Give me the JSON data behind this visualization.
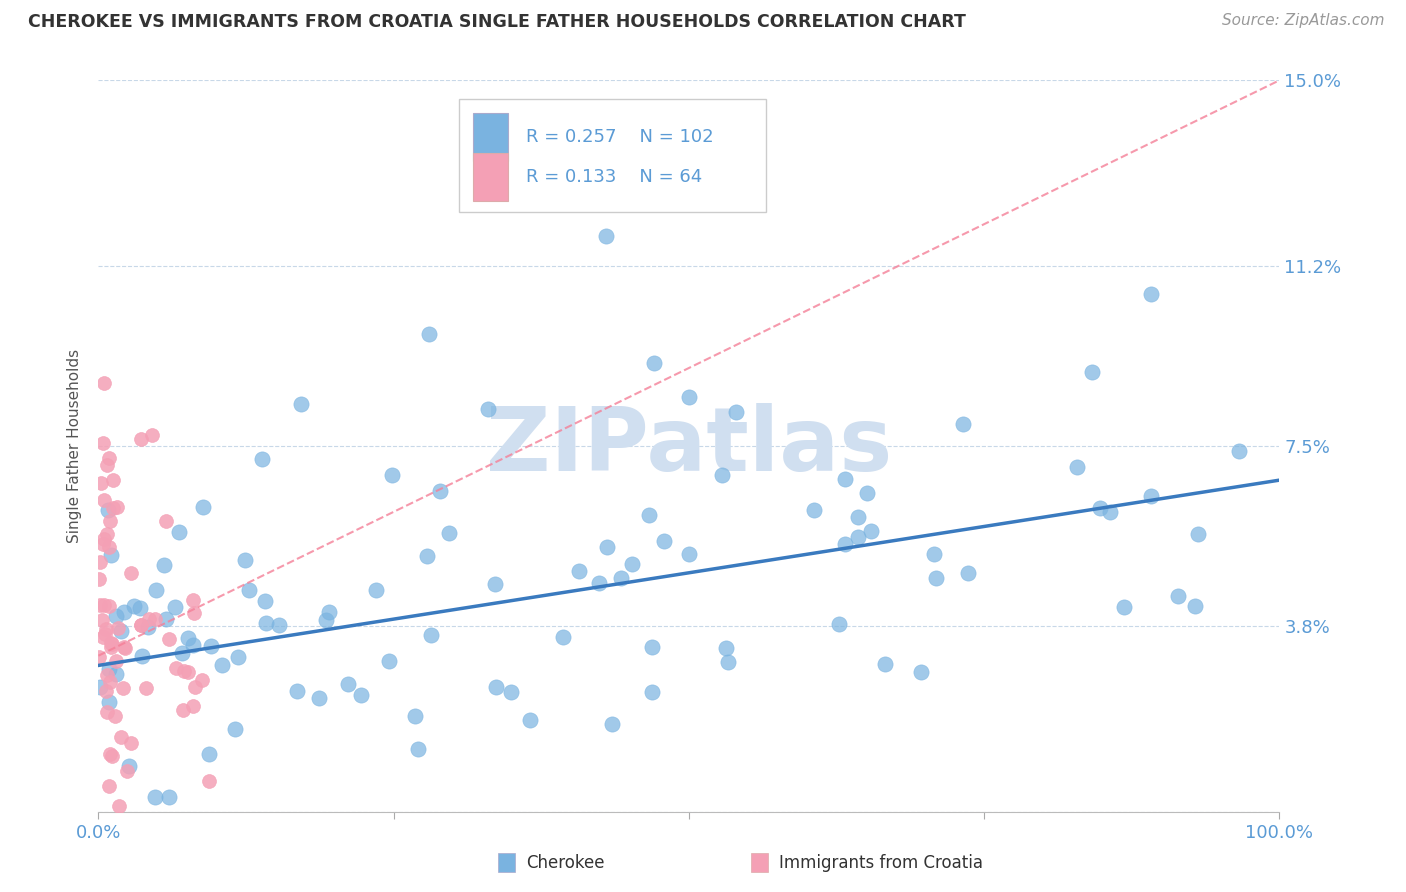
{
  "title": "CHEROKEE VS IMMIGRANTS FROM CROATIA SINGLE FATHER HOUSEHOLDS CORRELATION CHART",
  "source": "Source: ZipAtlas.com",
  "ylabel": "Single Father Households",
  "xlim": [
    0,
    100
  ],
  "ylim": [
    0,
    15
  ],
  "yticks": [
    0,
    3.8,
    7.5,
    11.2,
    15.0
  ],
  "ytick_labels": [
    "",
    "3.8%",
    "7.5%",
    "11.2%",
    "15.0%"
  ],
  "blue_color": "#7ab3e0",
  "pink_color": "#f4a0b5",
  "blue_line_color": "#3a7abf",
  "pink_line_color": "#f48098",
  "title_color": "#333333",
  "axis_color": "#5b9bd5",
  "watermark": "ZIPatlas",
  "watermark_color": "#d0dff0",
  "background_color": "#ffffff",
  "grid_color": "#c8d8e8",
  "legend_R1": "0.257",
  "legend_N1": "102",
  "legend_R2": "0.133",
  "legend_N2": "64",
  "label_cherokee": "Cherokee",
  "label_croatia": "Immigrants from Croatia",
  "blue_trend_x": [
    0,
    100
  ],
  "blue_trend_y": [
    3.0,
    6.8
  ],
  "pink_trend_x": [
    0,
    100
  ],
  "pink_trend_y": [
    3.2,
    15.0
  ]
}
